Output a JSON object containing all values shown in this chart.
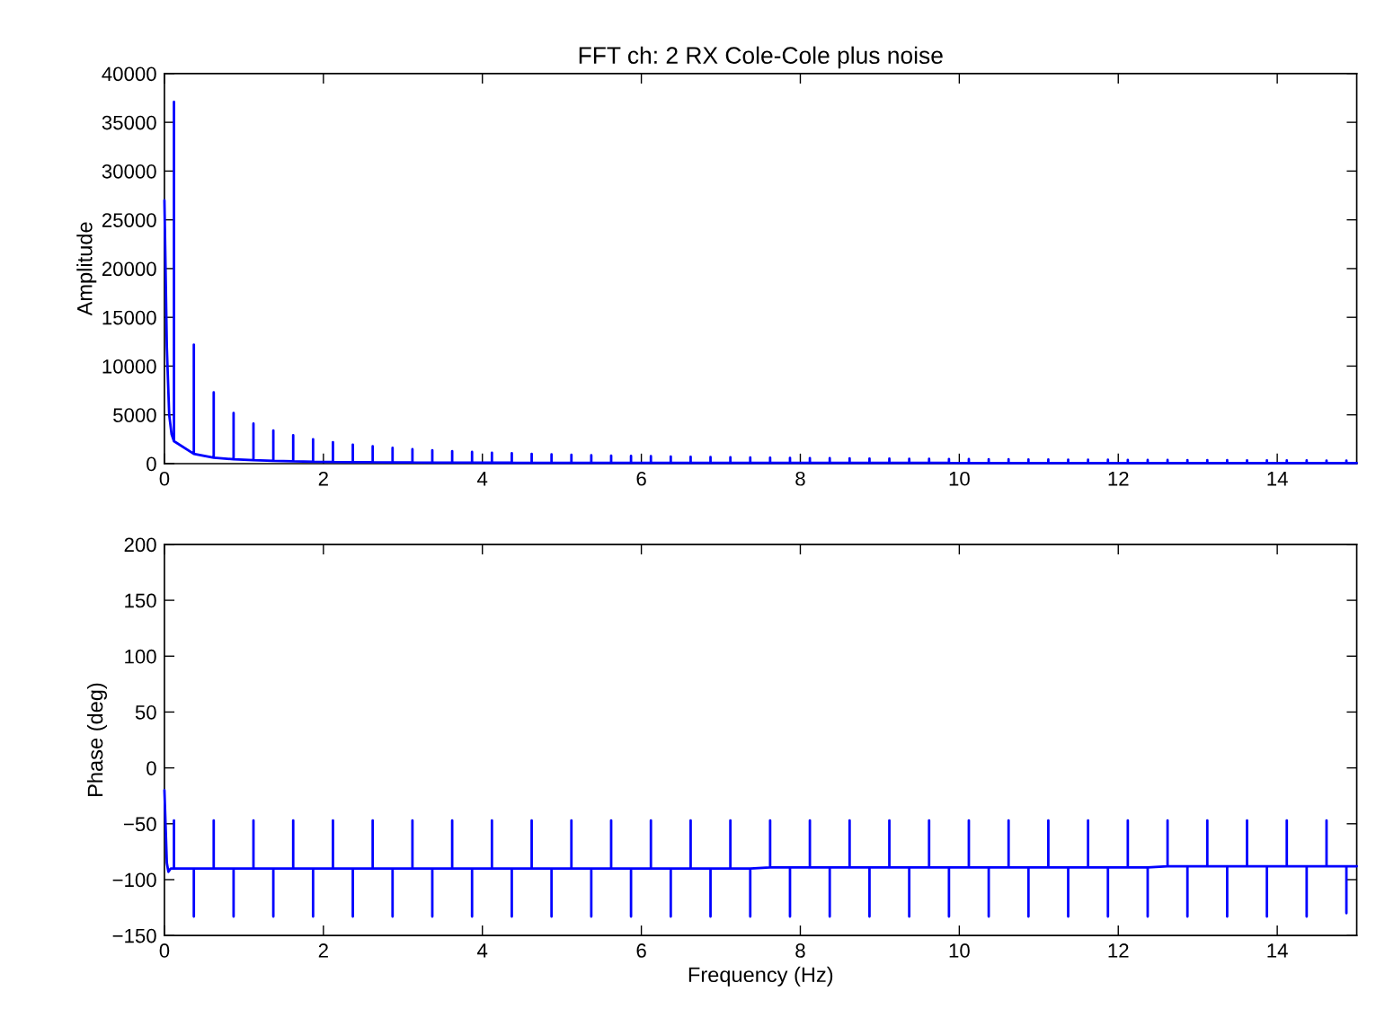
{
  "chart_data": [
    {
      "type": "line",
      "title": "FFT ch: 2 RX Cole-Cole plus noise",
      "ylabel": "Amplitude",
      "xlim": [
        0,
        15
      ],
      "xticks": [
        0,
        2,
        4,
        6,
        8,
        10,
        12,
        14
      ],
      "ylim": [
        0,
        40000
      ],
      "yticks": [
        0,
        5000,
        10000,
        15000,
        20000,
        25000,
        30000,
        35000,
        40000
      ],
      "grid": false,
      "legend": false,
      "series": [
        {
          "color": "#0000ff",
          "x": [
            0,
            0.03,
            0.06,
            0.09,
            0.12,
            0.12,
            0.12,
            0.37,
            0.37,
            0.37,
            0.62,
            0.62,
            0.62,
            0.87,
            0.87,
            0.87,
            1.12,
            1.12,
            1.12,
            1.37,
            1.37,
            1.37,
            1.62,
            1.62,
            1.62,
            1.87,
            1.87,
            1.87,
            2.12,
            2.12,
            2.12,
            2.37,
            2.37,
            2.37,
            2.62,
            2.62,
            2.62,
            2.87,
            2.87,
            2.87,
            3.12,
            3.12,
            3.12,
            3.37,
            3.37,
            3.37,
            3.62,
            3.62,
            3.62,
            3.87,
            3.87,
            3.87,
            4.12,
            4.12,
            4.12,
            4.37,
            4.37,
            4.37,
            4.62,
            4.62,
            4.62,
            4.87,
            4.87,
            4.87,
            5.12,
            5.12,
            5.12,
            5.37,
            5.37,
            5.37,
            5.62,
            5.62,
            5.62,
            5.87,
            5.87,
            5.87,
            6.12,
            6.12,
            6.12,
            6.37,
            6.37,
            6.37,
            6.62,
            6.62,
            6.62,
            6.87,
            6.87,
            6.87,
            7.12,
            7.12,
            7.12,
            7.37,
            7.37,
            7.37,
            7.62,
            7.62,
            7.62,
            7.87,
            7.87,
            7.87,
            8.12,
            8.12,
            8.12,
            8.37,
            8.37,
            8.37,
            8.62,
            8.62,
            8.62,
            8.87,
            8.87,
            8.87,
            9.12,
            9.12,
            9.12,
            9.37,
            9.37,
            9.37,
            9.62,
            9.62,
            9.62,
            9.87,
            9.87,
            9.87,
            10.12,
            10.12,
            10.12,
            10.37,
            10.37,
            10.37,
            10.62,
            10.62,
            10.62,
            10.87,
            10.87,
            10.87,
            11.12,
            11.12,
            11.12,
            11.37,
            11.37,
            11.37,
            11.62,
            11.62,
            11.62,
            11.87,
            11.87,
            11.87,
            12.12,
            12.12,
            12.12,
            12.37,
            12.37,
            12.37,
            12.62,
            12.62,
            12.62,
            12.87,
            12.87,
            12.87,
            13.12,
            13.12,
            13.12,
            13.37,
            13.37,
            13.37,
            13.62,
            13.62,
            13.62,
            13.87,
            13.87,
            13.87,
            14.12,
            14.12,
            14.12,
            14.37,
            14.37,
            14.37,
            14.62,
            14.62,
            14.62,
            14.87,
            14.87,
            14.87,
            15
          ],
          "values": [
            27000,
            12000,
            5000,
            3000,
            2300,
            37100,
            2300,
            1000,
            12200,
            1000,
            600,
            7300,
            600,
            450,
            5200,
            450,
            350,
            4100,
            350,
            280,
            3400,
            280,
            230,
            2900,
            230,
            200,
            2500,
            200,
            170,
            2200,
            170,
            150,
            1950,
            150,
            140,
            1770,
            140,
            130,
            1610,
            130,
            120,
            1480,
            120,
            110,
            1370,
            110,
            100,
            1280,
            100,
            100,
            1200,
            100,
            90,
            1120,
            90,
            90,
            1060,
            90,
            80,
            1000,
            80,
            80,
            950,
            80,
            70,
            900,
            70,
            70,
            860,
            70,
            70,
            820,
            70,
            70,
            790,
            70,
            70,
            760,
            70,
            70,
            730,
            70,
            70,
            700,
            70,
            70,
            670,
            70,
            70,
            650,
            70,
            70,
            630,
            70,
            70,
            610,
            70,
            70,
            590,
            70,
            70,
            570,
            70,
            70,
            550,
            70,
            70,
            540,
            70,
            70,
            520,
            70,
            70,
            510,
            70,
            70,
            490,
            70,
            70,
            480,
            70,
            70,
            470,
            70,
            60,
            460,
            60,
            60,
            450,
            60,
            60,
            440,
            60,
            60,
            430,
            60,
            60,
            420,
            60,
            60,
            410,
            60,
            60,
            400,
            60,
            60,
            390,
            60,
            60,
            380,
            60,
            60,
            375,
            60,
            60,
            365,
            60,
            60,
            360,
            60,
            60,
            355,
            60,
            60,
            345,
            60,
            60,
            340,
            60,
            60,
            335,
            60,
            60,
            330,
            60,
            60,
            325,
            60,
            60,
            315,
            60,
            60,
            310,
            60,
            60
          ]
        }
      ]
    },
    {
      "type": "line",
      "xlabel": "Frequency (Hz)",
      "ylabel": "Phase (deg)",
      "xlim": [
        0,
        15
      ],
      "xticks": [
        0,
        2,
        4,
        6,
        8,
        10,
        12,
        14
      ],
      "ylim": [
        -150,
        200
      ],
      "yticks": [
        -150,
        -100,
        -50,
        0,
        50,
        100,
        150,
        200
      ],
      "grid": false,
      "legend": false,
      "series": [
        {
          "color": "#0000ff",
          "x": [
            0,
            0.03,
            0.05,
            0.08,
            0.12,
            0.12,
            0.12,
            0.37,
            0.37,
            0.37,
            0.62,
            0.62,
            0.62,
            0.87,
            0.87,
            0.87,
            1.12,
            1.12,
            1.12,
            1.37,
            1.37,
            1.37,
            1.62,
            1.62,
            1.62,
            1.87,
            1.87,
            1.87,
            2.12,
            2.12,
            2.12,
            2.37,
            2.37,
            2.37,
            2.62,
            2.62,
            2.62,
            2.87,
            2.87,
            2.87,
            3.12,
            3.12,
            3.12,
            3.37,
            3.37,
            3.37,
            3.62,
            3.62,
            3.62,
            3.87,
            3.87,
            3.87,
            4.12,
            4.12,
            4.12,
            4.37,
            4.37,
            4.37,
            4.62,
            4.62,
            4.62,
            4.87,
            4.87,
            4.87,
            5.12,
            5.12,
            5.12,
            5.37,
            5.37,
            5.37,
            5.62,
            5.62,
            5.62,
            5.87,
            5.87,
            5.87,
            6.12,
            6.12,
            6.12,
            6.37,
            6.37,
            6.37,
            6.62,
            6.62,
            6.62,
            6.87,
            6.87,
            6.87,
            7.12,
            7.12,
            7.12,
            7.37,
            7.37,
            7.37,
            7.62,
            7.62,
            7.62,
            7.87,
            7.87,
            7.87,
            8.12,
            8.12,
            8.12,
            8.37,
            8.37,
            8.37,
            8.62,
            8.62,
            8.62,
            8.87,
            8.87,
            8.87,
            9.12,
            9.12,
            9.12,
            9.37,
            9.37,
            9.37,
            9.62,
            9.62,
            9.62,
            9.87,
            9.87,
            9.87,
            10.12,
            10.12,
            10.12,
            10.37,
            10.37,
            10.37,
            10.62,
            10.62,
            10.62,
            10.87,
            10.87,
            10.87,
            11.12,
            11.12,
            11.12,
            11.37,
            11.37,
            11.37,
            11.62,
            11.62,
            11.62,
            11.87,
            11.87,
            11.87,
            12.12,
            12.12,
            12.12,
            12.37,
            12.37,
            12.37,
            12.62,
            12.62,
            12.62,
            12.87,
            12.87,
            12.87,
            13.12,
            13.12,
            13.12,
            13.37,
            13.37,
            13.37,
            13.62,
            13.62,
            13.62,
            13.87,
            13.87,
            13.87,
            14.12,
            14.12,
            14.12,
            14.37,
            14.37,
            14.37,
            14.62,
            14.62,
            14.62,
            14.87,
            14.87,
            14.87,
            15
          ],
          "values": [
            -20,
            -85,
            -93,
            -90,
            -90,
            -47,
            -90,
            -90,
            -133,
            -90,
            -90,
            -47,
            -90,
            -90,
            -133,
            -90,
            -90,
            -47,
            -90,
            -90,
            -133,
            -90,
            -90,
            -47,
            -90,
            -90,
            -133,
            -90,
            -90,
            -47,
            -90,
            -90,
            -133,
            -90,
            -90,
            -47,
            -90,
            -90,
            -133,
            -90,
            -90,
            -47,
            -90,
            -90,
            -133,
            -90,
            -90,
            -47,
            -90,
            -90,
            -133,
            -90,
            -90,
            -47,
            -90,
            -90,
            -133,
            -90,
            -90,
            -47,
            -90,
            -90,
            -133,
            -90,
            -90,
            -47,
            -90,
            -90,
            -133,
            -90,
            -90,
            -47,
            -90,
            -90,
            -133,
            -90,
            -90,
            -47,
            -90,
            -90,
            -133,
            -90,
            -90,
            -47,
            -90,
            -90,
            -133,
            -90,
            -90,
            -47,
            -90,
            -90,
            -133,
            -90,
            -89,
            -47,
            -89,
            -89,
            -133,
            -89,
            -89,
            -47,
            -89,
            -89,
            -133,
            -89,
            -89,
            -47,
            -89,
            -89,
            -133,
            -89,
            -89,
            -47,
            -89,
            -89,
            -133,
            -89,
            -89,
            -47,
            -89,
            -89,
            -133,
            -89,
            -89,
            -47,
            -89,
            -89,
            -133,
            -89,
            -89,
            -47,
            -89,
            -89,
            -133,
            -89,
            -89,
            -47,
            -89,
            -89,
            -133,
            -89,
            -89,
            -47,
            -89,
            -89,
            -133,
            -89,
            -89,
            -47,
            -89,
            -89,
            -133,
            -89,
            -88,
            -47,
            -88,
            -88,
            -133,
            -88,
            -88,
            -47,
            -88,
            -88,
            -133,
            -88,
            -88,
            -47,
            -88,
            -88,
            -133,
            -88,
            -88,
            -47,
            -88,
            -88,
            -133,
            -88,
            -88,
            -47,
            -88,
            -88,
            -130,
            -88,
            -88
          ]
        }
      ]
    }
  ]
}
